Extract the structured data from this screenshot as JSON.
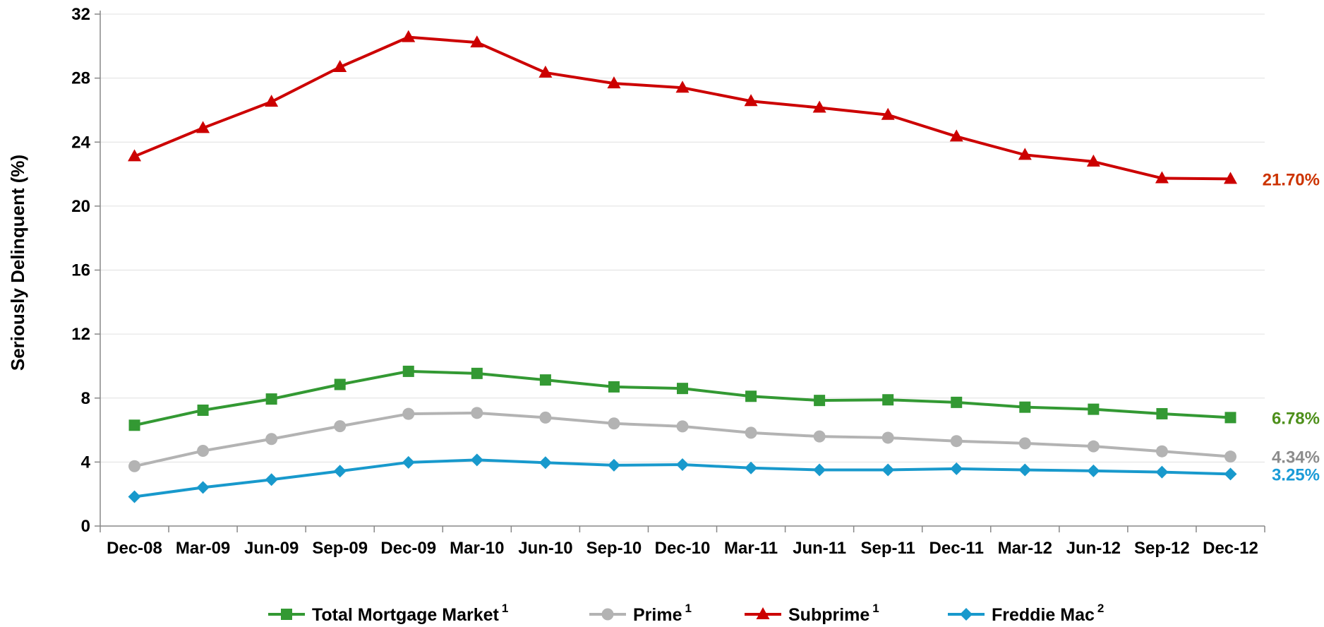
{
  "chart_data": {
    "type": "line",
    "title": "",
    "xlabel": "",
    "ylabel": "Seriously Delinquent (%)",
    "ylim": [
      0,
      32
    ],
    "yticks": [
      0,
      4,
      8,
      12,
      16,
      20,
      24,
      28,
      32
    ],
    "grid": "horizontal",
    "legend_position": "bottom",
    "categories": [
      "Dec-08",
      "Mar-09",
      "Jun-09",
      "Sep-09",
      "Dec-09",
      "Mar-10",
      "Jun-10",
      "Sep-10",
      "Dec-10",
      "Mar-11",
      "Jun-11",
      "Sep-11",
      "Dec-11",
      "Mar-12",
      "Jun-12",
      "Sep-12",
      "Dec-12"
    ],
    "series": [
      {
        "name": "Total Mortgage Market",
        "superscript": "1",
        "color": "#339933",
        "marker": "square",
        "values": [
          6.3,
          7.24,
          7.94,
          8.85,
          9.67,
          9.54,
          9.13,
          8.7,
          8.6,
          8.11,
          7.85,
          7.89,
          7.73,
          7.43,
          7.3,
          7.02,
          6.78
        ],
        "end_label": "6.78%",
        "end_label_color": "#4D8F1A"
      },
      {
        "name": "Prime",
        "superscript": "1",
        "color": "#B3B3B3",
        "marker": "circle",
        "values": [
          3.74,
          4.7,
          5.44,
          6.24,
          7.01,
          7.07,
          6.78,
          6.41,
          6.23,
          5.83,
          5.6,
          5.52,
          5.31,
          5.17,
          4.98,
          4.67,
          4.34
        ],
        "end_label": "4.34%",
        "end_label_color": "#8C8C8C"
      },
      {
        "name": "Subprime",
        "superscript": "1",
        "color": "#CC0000",
        "marker": "triangle",
        "values": [
          23.11,
          24.88,
          26.52,
          28.69,
          30.56,
          30.23,
          28.34,
          27.67,
          27.4,
          26.56,
          26.15,
          25.7,
          24.35,
          23.2,
          22.78,
          21.74,
          21.7
        ],
        "end_label": "21.70%",
        "end_label_color": "#CC3300"
      },
      {
        "name": "Freddie Mac",
        "superscript": "2",
        "color": "#1899CC",
        "marker": "diamond",
        "values": [
          1.83,
          2.41,
          2.9,
          3.43,
          3.98,
          4.13,
          3.96,
          3.8,
          3.84,
          3.63,
          3.51,
          3.51,
          3.58,
          3.51,
          3.45,
          3.37,
          3.25
        ],
        "end_label": "3.25%",
        "end_label_color": "#1A9BD7"
      }
    ]
  }
}
